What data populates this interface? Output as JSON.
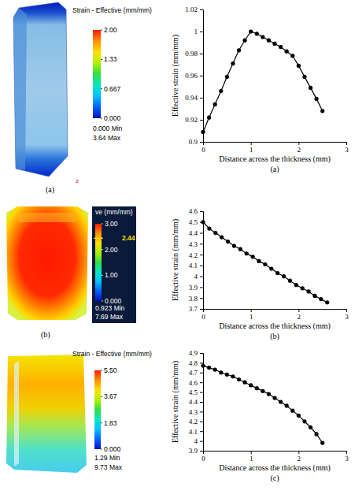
{
  "chart_data": [
    {
      "type": "line",
      "caption": "(a)",
      "x_label": "Distance across the thickness (mm)",
      "y_label": "Effective strain (mm/mm)",
      "x": [
        0,
        0.125,
        0.25,
        0.375,
        0.5,
        0.625,
        0.75,
        0.875,
        1.0,
        1.125,
        1.25,
        1.375,
        1.5,
        1.625,
        1.75,
        1.875,
        2.0,
        2.125,
        2.25,
        2.375,
        2.5
      ],
      "values": [
        0.909,
        0.922,
        0.934,
        0.946,
        0.959,
        0.971,
        0.983,
        0.992,
        1.0,
        0.998,
        0.995,
        0.992,
        0.989,
        0.986,
        0.982,
        0.978,
        0.969,
        0.959,
        0.949,
        0.939,
        0.928
      ],
      "xlim": [
        0,
        3
      ],
      "xticks": [
        0,
        1,
        2,
        3
      ],
      "ylim": [
        0.9,
        1.02
      ],
      "yticks": [
        0.9,
        0.92,
        0.94,
        0.96,
        0.98,
        1,
        1.02
      ],
      "color": "#000000",
      "marker": "circle",
      "line_style": "solid"
    },
    {
      "type": "line",
      "caption": "(b)",
      "x_label": "Distance across the thickness (mm)",
      "y_label": "Effective strain (mm/mm)",
      "x": [
        0,
        0.13,
        0.26,
        0.39,
        0.52,
        0.65,
        0.78,
        0.91,
        1.04,
        1.17,
        1.3,
        1.43,
        1.56,
        1.69,
        1.82,
        1.95,
        2.08,
        2.21,
        2.34,
        2.47,
        2.6
      ],
      "values": [
        4.5,
        4.44,
        4.4,
        4.36,
        4.32,
        4.28,
        4.25,
        4.21,
        4.18,
        4.14,
        4.11,
        4.07,
        4.03,
        4.0,
        3.96,
        3.92,
        3.89,
        3.86,
        3.82,
        3.79,
        3.76
      ],
      "xlim": [
        0,
        3
      ],
      "xticks": [
        0,
        1,
        2,
        3
      ],
      "ylim": [
        3.7,
        4.6
      ],
      "yticks": [
        3.7,
        3.8,
        3.9,
        4,
        4.1,
        4.2,
        4.3,
        4.4,
        4.5,
        4.6
      ],
      "color": "#000000",
      "marker": "circle",
      "line_style": "solid"
    },
    {
      "type": "line",
      "caption": "(c)",
      "x_label": "Distance across the thickness (mm)",
      "y_label": "Effective strain (mm/mm)",
      "x": [
        0,
        0.125,
        0.25,
        0.375,
        0.5,
        0.625,
        0.75,
        0.875,
        1.0,
        1.125,
        1.25,
        1.375,
        1.5,
        1.625,
        1.75,
        1.875,
        2.0,
        2.125,
        2.25,
        2.375,
        2.5
      ],
      "values": [
        4.77,
        4.75,
        4.73,
        4.7,
        4.68,
        4.66,
        4.63,
        4.6,
        4.57,
        4.54,
        4.51,
        4.48,
        4.44,
        4.4,
        4.36,
        4.31,
        4.26,
        4.2,
        4.14,
        4.07,
        3.98
      ],
      "xlim": [
        0,
        3
      ],
      "xticks": [
        0,
        1,
        2,
        3
      ],
      "ylim": [
        3.9,
        4.9
      ],
      "yticks": [
        3.9,
        4,
        4.1,
        4.2,
        4.3,
        4.4,
        4.5,
        4.6,
        4.7,
        4.8,
        4.9
      ],
      "color": "#000000",
      "marker": "circle",
      "line_style": "solid"
    }
  ],
  "contour_plots": [
    {
      "caption": "(a)",
      "axis_label": "z",
      "colorbar_title": "Strain - Effective (mm/mm)",
      "colorbar_range": [
        0,
        2
      ],
      "colorbar_ticks": [
        {
          "value": 2,
          "label": "2.00"
        },
        1.33,
        0.667,
        {
          "value": 0,
          "label": "0.000"
        }
      ],
      "min": {
        "value": 0,
        "label": "0.000 Min"
      },
      "max": {
        "value": 3.64,
        "label": "3.64 Max"
      }
    },
    {
      "caption": "(b)",
      "colorbar_title": "ve (mm/mm)",
      "colorbar_range": [
        0,
        3
      ],
      "colorbar_ticks": [
        {
          "value": 3,
          "label": "3.00"
        },
        {
          "value": 2,
          "label": "2.00"
        },
        {
          "value": 1,
          "label": "1.00"
        },
        {
          "value": 0,
          "label": "0.000"
        }
      ],
      "marker_value": 2.44,
      "min": {
        "value": 0.923,
        "label": "0.923 Min"
      },
      "max": {
        "value": 7.69,
        "label": "7.69 Max"
      }
    },
    {
      "colorbar_title": "Strain - Effective (mm/mm)",
      "colorbar_range": [
        0,
        5.5
      ],
      "colorbar_ticks": [
        {
          "value": 5.5,
          "label": "5.50"
        },
        3.67,
        1.83,
        {
          "value": 0,
          "label": "0.000"
        }
      ],
      "min": {
        "value": 1.29,
        "label": "1.29 Min"
      },
      "max": {
        "value": 9.73,
        "label": "9.73 Max"
      }
    }
  ]
}
